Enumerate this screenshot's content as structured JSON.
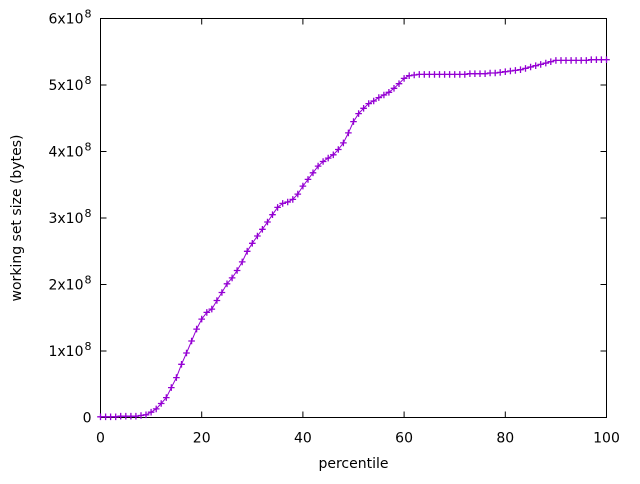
{
  "figure": {
    "background": "#ffffff",
    "border_color": "#000000",
    "text_color": "#000000"
  },
  "chart_data": {
    "type": "line",
    "style": "linespoints",
    "marker": "plus",
    "line_color": "#9400d3",
    "title": "",
    "xlabel": "percentile",
    "ylabel": "working set size (bytes)",
    "xlim": [
      0,
      100
    ],
    "ylim": [
      0,
      600000000
    ],
    "grid": false,
    "legend": "none",
    "x_ticks": [
      0,
      20,
      40,
      60,
      80,
      100
    ],
    "x_tick_labels": [
      "0",
      "20",
      "40",
      "60",
      "80",
      "100"
    ],
    "y_ticks": [
      0,
      100000000,
      200000000,
      300000000,
      400000000,
      500000000,
      600000000
    ],
    "y_tick_labels": [
      "0",
      "1x10^8",
      "2x10^8",
      "3x10^8",
      "4x10^8",
      "5x10^8",
      "6x10^8"
    ],
    "x": [
      0,
      1,
      2,
      3,
      4,
      5,
      6,
      7,
      8,
      9,
      10,
      11,
      12,
      13,
      14,
      15,
      16,
      17,
      18,
      19,
      20,
      21,
      22,
      23,
      24,
      25,
      26,
      27,
      28,
      29,
      30,
      31,
      32,
      33,
      34,
      35,
      36,
      37,
      38,
      39,
      40,
      41,
      42,
      43,
      44,
      45,
      46,
      47,
      48,
      49,
      50,
      51,
      52,
      53,
      54,
      55,
      56,
      57,
      58,
      59,
      60,
      61,
      62,
      63,
      64,
      65,
      66,
      67,
      68,
      69,
      70,
      71,
      72,
      73,
      74,
      75,
      76,
      77,
      78,
      79,
      80,
      81,
      82,
      83,
      84,
      85,
      86,
      87,
      88,
      89,
      90,
      91,
      92,
      93,
      94,
      95,
      96,
      97,
      98,
      99,
      100
    ],
    "y": [
      1000000.0,
      1000000.0,
      1000000.0,
      1000000.0,
      2000000.0,
      2000000.0,
      2000000.0,
      2000000.0,
      3000000.0,
      4000000.0,
      8000000.0,
      13000000.0,
      21000000.0,
      30000000.0,
      45000000.0,
      60000000.0,
      80000000.0,
      97000000.0,
      115000000.0,
      133000000.0,
      148000000.0,
      158000000.0,
      163000000.0,
      176000000.0,
      188000000.0,
      201000000.0,
      210000000.0,
      221000000.0,
      234000000.0,
      250000000.0,
      262000000.0,
      273000000.0,
      283000000.0,
      294000000.0,
      305000000.0,
      316000000.0,
      322000000.0,
      324000000.0,
      328000000.0,
      336000000.0,
      348000000.0,
      358000000.0,
      368000000.0,
      378000000.0,
      385000000.0,
      390000000.0,
      395000000.0,
      403000000.0,
      413000000.0,
      428000000.0,
      445000000.0,
      457000000.0,
      465000000.0,
      472000000.0,
      476000000.0,
      481000000.0,
      485000000.0,
      489000000.0,
      495000000.0,
      502000000.0,
      510000000.0,
      514000000.0,
      515000000.0,
      516000000.0,
      516000000.0,
      516000000.0,
      516000000.0,
      516000000.0,
      516000000.0,
      516000000.0,
      516000000.0,
      516000000.0,
      516000000.0,
      517000000.0,
      517000000.0,
      517000000.0,
      517000000.0,
      518000000.0,
      518000000.0,
      519000000.0,
      520000000.0,
      521000000.0,
      522000000.0,
      523000000.0,
      525000000.0,
      527000000.0,
      529000000.0,
      531000000.0,
      533000000.0,
      535000000.0,
      537000000.0,
      537000000.0,
      537000000.0,
      537000000.0,
      537000000.0,
      537000000.0,
      537000000.0,
      538000000.0,
      538000000.0,
      538000000.0,
      538000000.0
    ]
  }
}
